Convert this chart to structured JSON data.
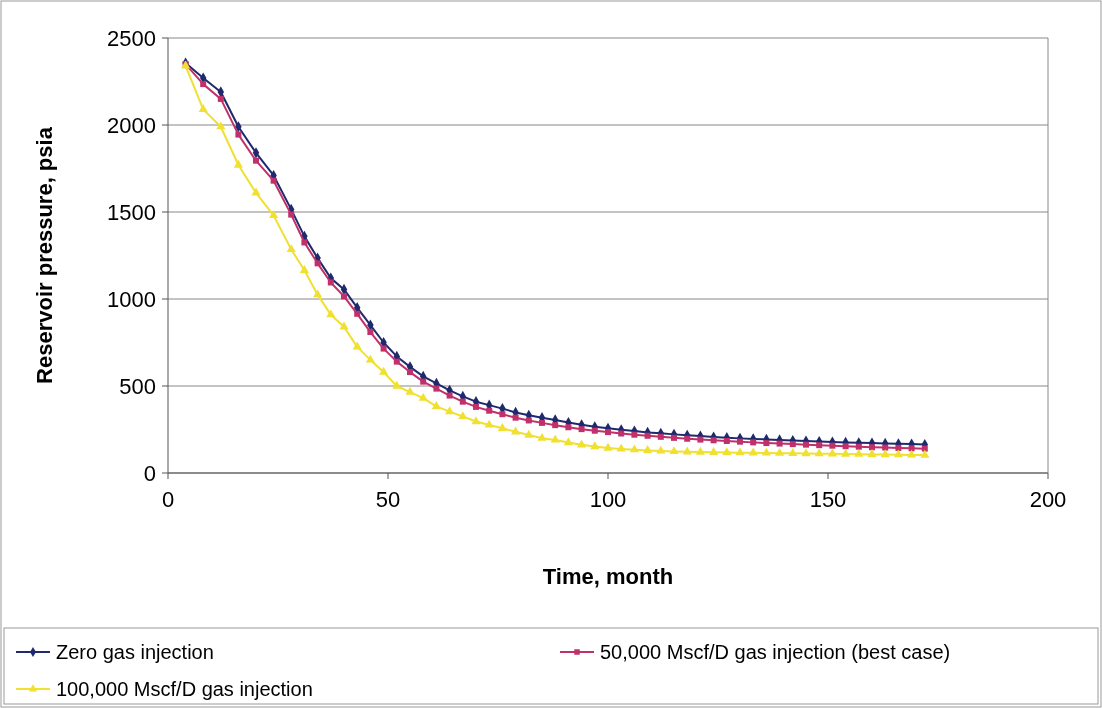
{
  "chart_data": {
    "type": "line",
    "xlabel": "Time, month",
    "ylabel": "Reservoir pressure, psia",
    "x": [
      4,
      8,
      12,
      16,
      20,
      24,
      28,
      31,
      34,
      37,
      40,
      43,
      46,
      49,
      52,
      55,
      58,
      61,
      64,
      67,
      70,
      73,
      76,
      79,
      82,
      85,
      88,
      91,
      94,
      97,
      100,
      103,
      106,
      109,
      112,
      115,
      118,
      121,
      124,
      127,
      130,
      133,
      136,
      139,
      142,
      145,
      148,
      151,
      154,
      157,
      160,
      163,
      166,
      169,
      172
    ],
    "series": [
      {
        "name": "Zero gas injection",
        "color": "#1f2a6e",
        "marker": "diamond",
        "values": [
          2356,
          2270,
          2190,
          1990,
          1840,
          1710,
          1515,
          1360,
          1235,
          1120,
          1055,
          950,
          850,
          750,
          670,
          610,
          555,
          515,
          475,
          440,
          410,
          390,
          370,
          348,
          332,
          318,
          305,
          290,
          277,
          266,
          257,
          248,
          241,
          233,
          228,
          222,
          217,
          212,
          207,
          203,
          199,
          196,
          193,
          190,
          187,
          184,
          181,
          178,
          176,
          174,
          172,
          170,
          168,
          166,
          164
        ]
      },
      {
        "name": "50,000 Mscf/D gas injection (best case)",
        "color": "#c0306a",
        "marker": "square",
        "values": [
          2350,
          2235,
          2150,
          1945,
          1795,
          1680,
          1485,
          1325,
          1205,
          1095,
          1015,
          915,
          810,
          715,
          640,
          580,
          525,
          485,
          445,
          410,
          380,
          358,
          338,
          318,
          302,
          288,
          275,
          263,
          252,
          243,
          235,
          227,
          220,
          214,
          208,
          202,
          197,
          192,
          188,
          184,
          180,
          176,
          172,
          169,
          166,
          163,
          160,
          157,
          154,
          151,
          148,
          146,
          144,
          142,
          140
        ]
      },
      {
        "name": "100,000 Mscf/D gas injection",
        "color": "#f0e030",
        "marker": "triangle",
        "values": [
          2340,
          2090,
          1990,
          1770,
          1610,
          1480,
          1285,
          1165,
          1025,
          910,
          840,
          725,
          650,
          580,
          500,
          465,
          430,
          383,
          353,
          325,
          296,
          276,
          257,
          237,
          218,
          200,
          190,
          175,
          162,
          152,
          143,
          138,
          134,
          130,
          127,
          124,
          122,
          120,
          119,
          118,
          117,
          116,
          115,
          114,
          113,
          112,
          111,
          110,
          109,
          108,
          107,
          106,
          105,
          104,
          103
        ]
      }
    ],
    "xlim": [
      0,
      200
    ],
    "xticks": [
      0,
      50,
      100,
      150,
      200
    ],
    "ylim": [
      0,
      2500
    ],
    "yticks": [
      0,
      500,
      1000,
      1500,
      2000,
      2500
    ],
    "grid": "y",
    "legend": "bottom",
    "line_style": "solid"
  }
}
